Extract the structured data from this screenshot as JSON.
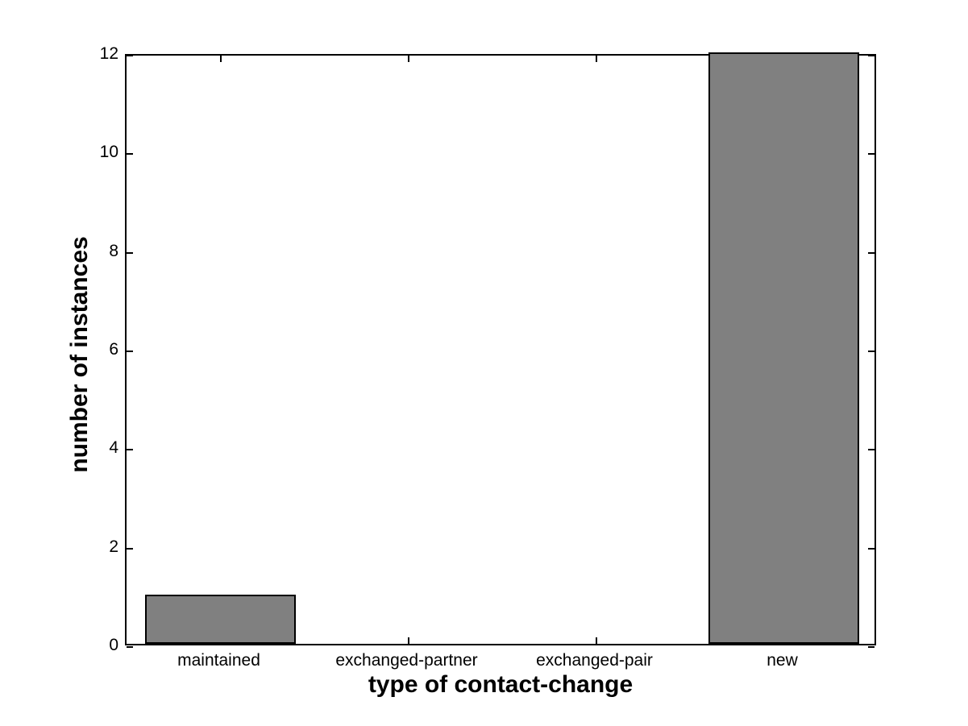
{
  "chart_data": {
    "type": "bar",
    "categories": [
      "maintained",
      "exchanged-partner",
      "exchanged-pair",
      "new"
    ],
    "values": [
      1,
      0,
      0,
      12
    ],
    "title": "",
    "xlabel": "type of contact-change",
    "ylabel": "number of instances",
    "ylim": [
      0,
      12
    ],
    "yticks": [
      0,
      2,
      4,
      6,
      8,
      10,
      12
    ],
    "bar_color": "#808080",
    "bar_edge_color": "#000000",
    "bar_width_fraction": 0.8,
    "axis_color": "#000000",
    "background_color": "#ffffff",
    "tick_direction": "in",
    "box": true,
    "grid": false,
    "legend": null
  }
}
